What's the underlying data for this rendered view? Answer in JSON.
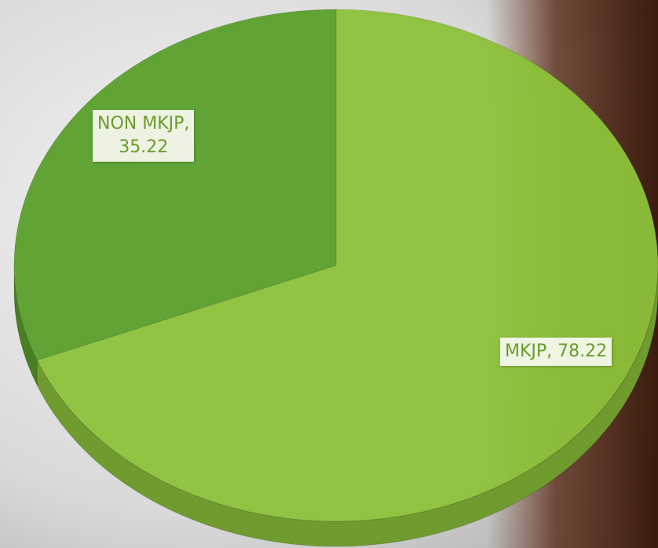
{
  "chart_data": {
    "type": "pie3d",
    "categories": [
      "MKJP",
      "NON MKJP"
    ],
    "values": [
      78.22,
      35.22
    ],
    "value_labels": [
      "MKJP, 78.22",
      "NON MKJP,\n35.22"
    ],
    "colors": [
      "#8cc23a",
      "#5a9f2b"
    ]
  }
}
